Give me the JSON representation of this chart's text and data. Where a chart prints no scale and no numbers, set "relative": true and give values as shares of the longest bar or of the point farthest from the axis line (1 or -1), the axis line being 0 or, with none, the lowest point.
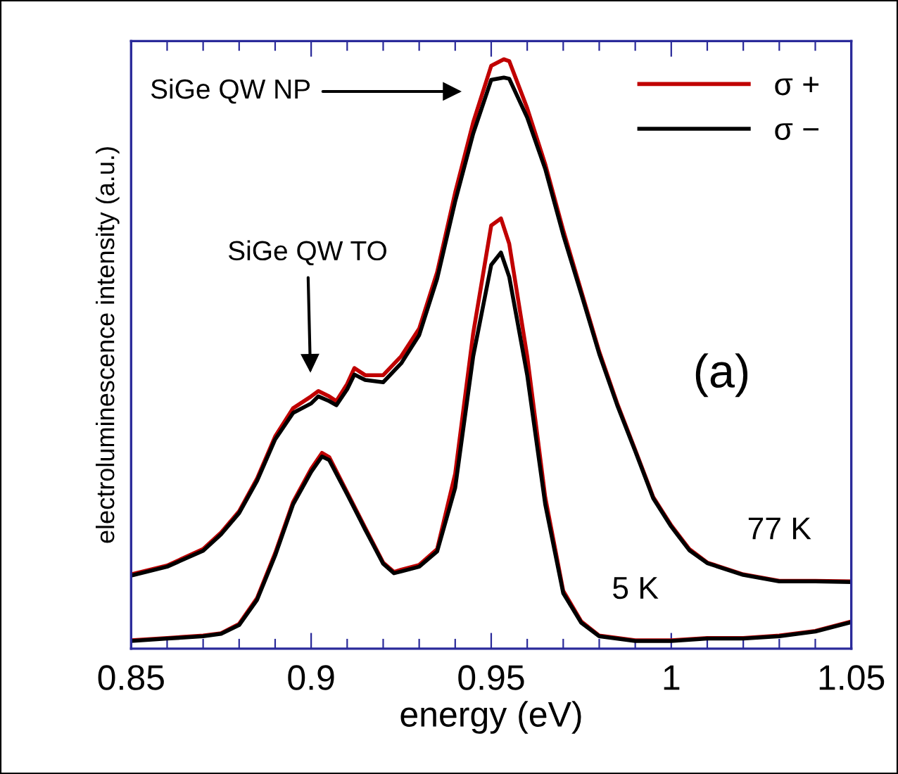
{
  "chart_data": {
    "type": "line",
    "relative": true,
    "xlabel": "energy (eV)",
    "ylabel": "electroluminescence intensity (a.u.)",
    "xlim": [
      0.85,
      1.05
    ],
    "xticks": [
      0.85,
      {
        "value": 0.86,
        "label": null
      },
      {
        "value": 0.87,
        "label": null
      },
      {
        "value": 0.88,
        "label": null
      },
      {
        "value": 0.89,
        "label": null
      },
      0.9,
      {
        "value": 0.91,
        "label": null
      },
      {
        "value": 0.92,
        "label": null
      },
      {
        "value": 0.93,
        "label": null
      },
      {
        "value": 0.94,
        "label": null
      },
      0.95,
      {
        "value": 0.96,
        "label": null
      },
      {
        "value": 0.97,
        "label": null
      },
      {
        "value": 0.98,
        "label": null
      },
      {
        "value": 0.99,
        "label": null
      },
      1,
      {
        "value": 1.01,
        "label": null
      },
      {
        "value": 1.02,
        "label": null
      },
      {
        "value": 1.03,
        "label": null
      },
      {
        "value": 1.04,
        "label": null
      },
      1.05
    ],
    "grid": false,
    "legend": "top right",
    "tick_labels": "x",
    "line_style": "solid",
    "marker": "none",
    "series": [
      {
        "name": "σ +",
        "color": "#c00000",
        "x": [
          0.85,
          0.86,
          0.87,
          0.875,
          0.88,
          0.885,
          0.89,
          0.895,
          0.9,
          0.902,
          0.905,
          0.907,
          0.91,
          0.912,
          0.915,
          0.92,
          0.925,
          0.93,
          0.935,
          0.94,
          0.945,
          0.95,
          0.9535,
          0.955,
          0.96,
          0.965,
          0.97,
          0.975,
          0.98,
          0.985,
          0.99,
          0.995,
          1.0,
          1.005,
          1.01,
          1.02,
          1.03,
          1.04,
          1.05
        ],
        "values": [
          0.126,
          0.141,
          0.169,
          0.197,
          0.233,
          0.289,
          0.36,
          0.408,
          0.428,
          0.437,
          0.428,
          0.42,
          0.449,
          0.476,
          0.464,
          0.464,
          0.496,
          0.543,
          0.639,
          0.774,
          0.893,
          0.989,
          1.0,
          0.997,
          0.917,
          0.822,
          0.71,
          0.607,
          0.504,
          0.416,
          0.337,
          0.257,
          0.209,
          0.169,
          0.146,
          0.126,
          0.115,
          0.115,
          0.114
        ]
      },
      {
        "name": "σ −",
        "color": "#000000",
        "x": [
          0.85,
          0.86,
          0.87,
          0.875,
          0.88,
          0.885,
          0.89,
          0.895,
          0.9,
          0.902,
          0.905,
          0.907,
          0.91,
          0.912,
          0.915,
          0.92,
          0.925,
          0.93,
          0.935,
          0.94,
          0.945,
          0.95,
          0.9535,
          0.955,
          0.96,
          0.965,
          0.97,
          0.975,
          0.98,
          0.985,
          0.99,
          0.995,
          1.0,
          1.005,
          1.01,
          1.02,
          1.03,
          1.04,
          1.05
        ],
        "values": [
          0.124,
          0.139,
          0.166,
          0.194,
          0.23,
          0.285,
          0.355,
          0.4,
          0.416,
          0.428,
          0.42,
          0.413,
          0.44,
          0.465,
          0.456,
          0.452,
          0.484,
          0.532,
          0.628,
          0.759,
          0.874,
          0.965,
          0.969,
          0.967,
          0.901,
          0.814,
          0.702,
          0.602,
          0.5,
          0.413,
          0.335,
          0.255,
          0.207,
          0.167,
          0.145,
          0.125,
          0.114,
          0.114,
          0.113
        ]
      },
      {
        "color": "#c00000",
        "x": [
          0.85,
          0.86,
          0.87,
          0.875,
          0.88,
          0.885,
          0.89,
          0.895,
          0.9,
          0.903,
          0.905,
          0.91,
          0.915,
          0.92,
          0.923,
          0.925,
          0.93,
          0.935,
          0.94,
          0.945,
          0.95,
          0.9527,
          0.955,
          0.96,
          0.965,
          0.97,
          0.975,
          0.98,
          0.99,
          1.0,
          1.01,
          1.02,
          1.03,
          1.04,
          1.05
        ],
        "values": [
          0.014,
          0.018,
          0.022,
          0.026,
          0.042,
          0.086,
          0.162,
          0.249,
          0.305,
          0.332,
          0.325,
          0.265,
          0.205,
          0.146,
          0.13,
          0.134,
          0.142,
          0.169,
          0.297,
          0.535,
          0.718,
          0.73,
          0.687,
          0.496,
          0.257,
          0.098,
          0.046,
          0.022,
          0.014,
          0.014,
          0.018,
          0.018,
          0.022,
          0.03,
          0.046
        ]
      },
      {
        "color": "#000000",
        "x": [
          0.85,
          0.86,
          0.87,
          0.875,
          0.88,
          0.885,
          0.89,
          0.895,
          0.9,
          0.903,
          0.905,
          0.91,
          0.915,
          0.92,
          0.923,
          0.925,
          0.93,
          0.935,
          0.94,
          0.945,
          0.95,
          0.9527,
          0.955,
          0.96,
          0.965,
          0.97,
          0.975,
          0.98,
          0.99,
          1.0,
          1.01,
          1.02,
          1.03,
          1.04,
          1.05
        ],
        "values": [
          0.013,
          0.017,
          0.021,
          0.025,
          0.04,
          0.083,
          0.158,
          0.245,
          0.3,
          0.326,
          0.32,
          0.262,
          0.202,
          0.144,
          0.128,
          0.131,
          0.139,
          0.165,
          0.273,
          0.496,
          0.651,
          0.672,
          0.631,
          0.464,
          0.245,
          0.094,
          0.044,
          0.021,
          0.013,
          0.013,
          0.017,
          0.017,
          0.021,
          0.029,
          0.045
        ]
      }
    ],
    "annotations": [
      "SiGe QW NP",
      "SiGe QW TO",
      "(a)",
      {
        "text": "77 K",
        "x": 1.03,
        "y": 0.115
      },
      {
        "text": "5 K",
        "x": 0.99,
        "y": 0.014
      }
    ]
  }
}
